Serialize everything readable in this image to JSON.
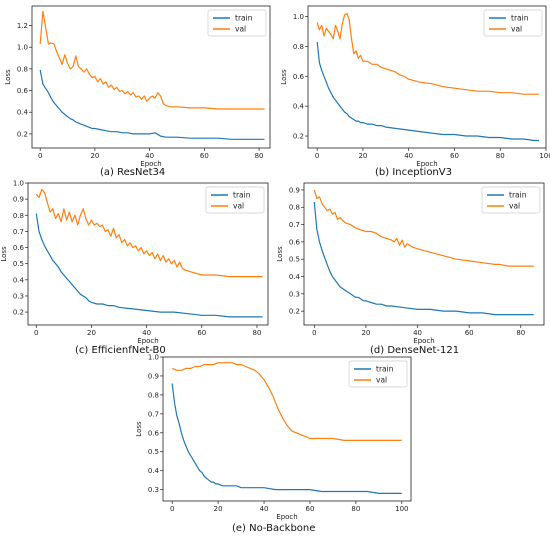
{
  "colors": {
    "train": "#1f77b4",
    "val": "#ff7f0e"
  },
  "chart_data": [
    {
      "type": "line",
      "caption": "(a) ResNet34",
      "xlabel": "Epoch",
      "ylabel": "Loss",
      "xlim": [
        -3,
        84
      ],
      "ylim": [
        0.07,
        1.38
      ],
      "xticks": [
        0,
        20,
        40,
        60,
        80
      ],
      "yticks": [
        0.2,
        0.4,
        0.6,
        0.8,
        1.0,
        1.2
      ],
      "ytick_labels": [
        "0.2",
        "0.4",
        "0.6",
        "0.8",
        "1.0",
        "1.2"
      ],
      "legend": "top-right",
      "series": [
        {
          "name": "train",
          "color": "#1f77b4",
          "x": [
            0,
            1,
            2,
            3,
            4,
            5,
            6,
            7,
            8,
            9,
            10,
            11,
            12,
            13,
            14,
            15,
            16,
            17,
            18,
            19,
            20,
            22,
            24,
            26,
            28,
            30,
            32,
            34,
            36,
            38,
            40,
            42,
            44,
            46,
            48,
            50,
            55,
            60,
            65,
            70,
            75,
            80,
            82
          ],
          "y": [
            0.79,
            0.66,
            0.62,
            0.58,
            0.53,
            0.49,
            0.46,
            0.43,
            0.4,
            0.38,
            0.36,
            0.34,
            0.33,
            0.31,
            0.3,
            0.29,
            0.28,
            0.27,
            0.26,
            0.25,
            0.25,
            0.24,
            0.23,
            0.22,
            0.22,
            0.21,
            0.21,
            0.2,
            0.2,
            0.2,
            0.2,
            0.21,
            0.18,
            0.17,
            0.17,
            0.17,
            0.16,
            0.16,
            0.16,
            0.15,
            0.15,
            0.15,
            0.15
          ]
        },
        {
          "name": "val",
          "color": "#ff7f0e",
          "x": [
            0,
            1,
            2,
            3,
            4,
            5,
            6,
            7,
            8,
            9,
            10,
            11,
            12,
            13,
            14,
            15,
            16,
            17,
            18,
            19,
            20,
            21,
            22,
            23,
            24,
            25,
            26,
            27,
            28,
            29,
            30,
            31,
            32,
            33,
            34,
            35,
            36,
            37,
            38,
            39,
            40,
            41,
            42,
            43,
            44,
            45,
            46,
            48,
            50,
            55,
            60,
            65,
            70,
            75,
            80,
            82
          ],
          "y": [
            1.03,
            1.33,
            1.18,
            1.03,
            1.04,
            1.03,
            0.96,
            0.9,
            0.84,
            0.93,
            0.85,
            0.8,
            0.82,
            0.92,
            0.82,
            0.8,
            0.77,
            0.8,
            0.75,
            0.72,
            0.73,
            0.68,
            0.71,
            0.66,
            0.68,
            0.63,
            0.65,
            0.61,
            0.63,
            0.59,
            0.6,
            0.57,
            0.59,
            0.56,
            0.58,
            0.54,
            0.55,
            0.52,
            0.55,
            0.5,
            0.53,
            0.55,
            0.53,
            0.58,
            0.55,
            0.48,
            0.46,
            0.45,
            0.45,
            0.44,
            0.44,
            0.43,
            0.43,
            0.43,
            0.43,
            0.43
          ]
        }
      ]
    },
    {
      "type": "line",
      "caption": "(b) InceptionV3",
      "xlabel": "Epoch",
      "ylabel": "Loss",
      "xlim": [
        -4,
        100
      ],
      "ylim": [
        0.12,
        1.07
      ],
      "xticks": [
        0,
        20,
        40,
        60,
        80,
        100
      ],
      "yticks": [
        0.2,
        0.4,
        0.6,
        0.8,
        1.0
      ],
      "ytick_labels": [
        "0.2",
        "0.4",
        "0.6",
        "0.8",
        "1.0"
      ],
      "legend": "top-right",
      "series": [
        {
          "name": "train",
          "color": "#1f77b4",
          "x": [
            0,
            1,
            2,
            3,
            4,
            5,
            6,
            7,
            8,
            9,
            10,
            11,
            12,
            13,
            14,
            15,
            16,
            17,
            18,
            19,
            20,
            22,
            24,
            26,
            28,
            30,
            35,
            40,
            45,
            50,
            55,
            60,
            65,
            70,
            75,
            80,
            85,
            90,
            95,
            97
          ],
          "y": [
            0.83,
            0.69,
            0.64,
            0.6,
            0.56,
            0.52,
            0.49,
            0.46,
            0.44,
            0.42,
            0.4,
            0.38,
            0.36,
            0.35,
            0.33,
            0.32,
            0.31,
            0.3,
            0.3,
            0.29,
            0.29,
            0.28,
            0.28,
            0.27,
            0.27,
            0.26,
            0.25,
            0.24,
            0.23,
            0.22,
            0.21,
            0.21,
            0.2,
            0.2,
            0.19,
            0.19,
            0.18,
            0.18,
            0.17,
            0.17
          ]
        },
        {
          "name": "val",
          "color": "#ff7f0e",
          "x": [
            0,
            1,
            2,
            3,
            4,
            5,
            6,
            7,
            8,
            9,
            10,
            11,
            12,
            13,
            14,
            15,
            16,
            17,
            18,
            19,
            20,
            22,
            24,
            26,
            28,
            30,
            32,
            34,
            36,
            38,
            40,
            45,
            50,
            55,
            60,
            65,
            70,
            75,
            80,
            85,
            90,
            95,
            97
          ],
          "y": [
            0.96,
            0.91,
            0.94,
            0.87,
            0.92,
            0.9,
            0.88,
            0.85,
            0.94,
            0.9,
            0.85,
            0.95,
            1.01,
            1.02,
            0.98,
            0.85,
            0.75,
            0.77,
            0.72,
            0.74,
            0.7,
            0.7,
            0.68,
            0.68,
            0.66,
            0.65,
            0.64,
            0.63,
            0.61,
            0.6,
            0.58,
            0.56,
            0.55,
            0.53,
            0.52,
            0.51,
            0.5,
            0.5,
            0.49,
            0.49,
            0.48,
            0.48,
            0.48
          ]
        }
      ]
    },
    {
      "type": "line",
      "caption": "(c) EfficienfNet-B0",
      "xlabel": "Epoch",
      "ylabel": "Loss",
      "xlim": [
        -3,
        84
      ],
      "ylim": [
        0.12,
        1.0
      ],
      "xticks": [
        0,
        20,
        40,
        60,
        80
      ],
      "yticks": [
        0.2,
        0.3,
        0.4,
        0.5,
        0.6,
        0.7,
        0.8,
        0.9,
        1.0
      ],
      "ytick_labels": [
        "0.2",
        "0.3",
        "0.4",
        "0.5",
        "0.6",
        "0.7",
        "0.8",
        "0.9",
        "1.0"
      ],
      "legend": "top-right",
      "series": [
        {
          "name": "train",
          "color": "#1f77b4",
          "x": [
            0,
            1,
            2,
            3,
            4,
            5,
            6,
            7,
            8,
            9,
            10,
            11,
            12,
            13,
            14,
            15,
            16,
            17,
            18,
            19,
            20,
            22,
            24,
            26,
            28,
            30,
            35,
            40,
            45,
            50,
            55,
            60,
            65,
            70,
            75,
            80,
            82
          ],
          "y": [
            0.81,
            0.7,
            0.65,
            0.61,
            0.58,
            0.55,
            0.52,
            0.5,
            0.48,
            0.45,
            0.43,
            0.41,
            0.39,
            0.37,
            0.35,
            0.33,
            0.31,
            0.3,
            0.29,
            0.27,
            0.26,
            0.25,
            0.25,
            0.24,
            0.24,
            0.23,
            0.22,
            0.21,
            0.2,
            0.2,
            0.19,
            0.18,
            0.18,
            0.17,
            0.17,
            0.17,
            0.17
          ]
        },
        {
          "name": "val",
          "color": "#ff7f0e",
          "x": [
            0,
            1,
            2,
            3,
            4,
            5,
            6,
            7,
            8,
            9,
            10,
            11,
            12,
            13,
            14,
            15,
            16,
            17,
            18,
            19,
            20,
            21,
            22,
            23,
            24,
            25,
            26,
            27,
            28,
            29,
            30,
            31,
            32,
            33,
            34,
            35,
            36,
            37,
            38,
            39,
            40,
            41,
            42,
            43,
            44,
            45,
            46,
            47,
            48,
            49,
            50,
            51,
            52,
            53,
            54,
            56,
            58,
            60,
            65,
            70,
            75,
            80,
            82
          ],
          "y": [
            0.93,
            0.91,
            0.96,
            0.94,
            0.88,
            0.82,
            0.84,
            0.78,
            0.81,
            0.76,
            0.84,
            0.77,
            0.82,
            0.76,
            0.8,
            0.74,
            0.8,
            0.84,
            0.78,
            0.74,
            0.77,
            0.74,
            0.75,
            0.73,
            0.74,
            0.7,
            0.71,
            0.67,
            0.72,
            0.66,
            0.68,
            0.63,
            0.65,
            0.61,
            0.63,
            0.6,
            0.61,
            0.58,
            0.6,
            0.56,
            0.58,
            0.55,
            0.57,
            0.53,
            0.56,
            0.52,
            0.55,
            0.51,
            0.53,
            0.5,
            0.52,
            0.48,
            0.51,
            0.47,
            0.46,
            0.45,
            0.44,
            0.43,
            0.43,
            0.42,
            0.42,
            0.42,
            0.42
          ]
        }
      ]
    },
    {
      "type": "line",
      "caption": "(d) DenseNet-121",
      "xlabel": "Epoch",
      "ylabel": "Loss",
      "xlim": [
        -4,
        89
      ],
      "ylim": [
        0.12,
        0.94
      ],
      "xticks": [
        0,
        20,
        40,
        60,
        80
      ],
      "yticks": [
        0.2,
        0.3,
        0.4,
        0.5,
        0.6,
        0.7,
        0.8,
        0.9
      ],
      "ytick_labels": [
        "0.2",
        "0.3",
        "0.4",
        "0.5",
        "0.6",
        "0.7",
        "0.8",
        "0.9"
      ],
      "legend": "top-right",
      "series": [
        {
          "name": "train",
          "color": "#1f77b4",
          "x": [
            0,
            1,
            2,
            3,
            4,
            5,
            6,
            7,
            8,
            9,
            10,
            11,
            12,
            13,
            14,
            15,
            16,
            17,
            18,
            19,
            20,
            22,
            24,
            26,
            28,
            30,
            35,
            40,
            45,
            50,
            55,
            60,
            65,
            70,
            75,
            80,
            85
          ],
          "y": [
            0.83,
            0.67,
            0.6,
            0.55,
            0.51,
            0.47,
            0.43,
            0.4,
            0.38,
            0.36,
            0.34,
            0.33,
            0.32,
            0.31,
            0.3,
            0.29,
            0.28,
            0.28,
            0.27,
            0.26,
            0.26,
            0.25,
            0.24,
            0.24,
            0.23,
            0.23,
            0.22,
            0.21,
            0.21,
            0.2,
            0.2,
            0.19,
            0.19,
            0.18,
            0.18,
            0.18,
            0.18
          ]
        },
        {
          "name": "val",
          "color": "#ff7f0e",
          "x": [
            0,
            1,
            2,
            3,
            4,
            5,
            6,
            7,
            8,
            9,
            10,
            12,
            14,
            16,
            18,
            20,
            22,
            24,
            26,
            28,
            30,
            31,
            32,
            33,
            34,
            35,
            36,
            38,
            40,
            45,
            50,
            55,
            60,
            65,
            70,
            72,
            75,
            80,
            85
          ],
          "y": [
            0.9,
            0.85,
            0.86,
            0.82,
            0.8,
            0.78,
            0.79,
            0.76,
            0.77,
            0.73,
            0.74,
            0.71,
            0.7,
            0.68,
            0.67,
            0.66,
            0.66,
            0.65,
            0.63,
            0.62,
            0.61,
            0.6,
            0.62,
            0.58,
            0.61,
            0.57,
            0.59,
            0.57,
            0.56,
            0.54,
            0.52,
            0.5,
            0.49,
            0.48,
            0.47,
            0.47,
            0.46,
            0.46,
            0.46
          ]
        }
      ]
    },
    {
      "type": "line",
      "caption": "(e) No-Backbone",
      "xlabel": "Epoch",
      "ylabel": "Loss",
      "xlim": [
        -4,
        104
      ],
      "ylim": [
        0.24,
        1.0
      ],
      "xticks": [
        0,
        20,
        40,
        60,
        80,
        100
      ],
      "yticks": [
        0.3,
        0.4,
        0.5,
        0.6,
        0.7,
        0.8,
        0.9,
        1.0
      ],
      "ytick_labels": [
        "0.3",
        "0.4",
        "0.5",
        "0.6",
        "0.7",
        "0.8",
        "0.9",
        "1.0"
      ],
      "legend": "top-right",
      "series": [
        {
          "name": "train",
          "color": "#1f77b4",
          "x": [
            0,
            1,
            2,
            3,
            4,
            5,
            6,
            7,
            8,
            9,
            10,
            11,
            12,
            13,
            14,
            15,
            16,
            17,
            18,
            19,
            20,
            22,
            24,
            26,
            28,
            30,
            35,
            40,
            45,
            50,
            55,
            60,
            65,
            70,
            75,
            80,
            85,
            90,
            95,
            100
          ],
          "y": [
            0.86,
            0.76,
            0.69,
            0.65,
            0.6,
            0.56,
            0.53,
            0.5,
            0.48,
            0.46,
            0.44,
            0.42,
            0.4,
            0.39,
            0.37,
            0.36,
            0.35,
            0.34,
            0.34,
            0.33,
            0.33,
            0.32,
            0.32,
            0.32,
            0.32,
            0.31,
            0.31,
            0.31,
            0.3,
            0.3,
            0.3,
            0.3,
            0.29,
            0.29,
            0.29,
            0.29,
            0.29,
            0.28,
            0.28,
            0.28
          ]
        },
        {
          "name": "val",
          "color": "#ff7f0e",
          "x": [
            0,
            2,
            4,
            6,
            8,
            10,
            12,
            14,
            16,
            18,
            20,
            22,
            24,
            26,
            28,
            30,
            32,
            34,
            36,
            38,
            40,
            42,
            44,
            46,
            48,
            50,
            52,
            54,
            56,
            58,
            60,
            65,
            70,
            75,
            80,
            85,
            90,
            95,
            100
          ],
          "y": [
            0.94,
            0.93,
            0.93,
            0.94,
            0.94,
            0.95,
            0.95,
            0.96,
            0.96,
            0.96,
            0.97,
            0.97,
            0.97,
            0.97,
            0.96,
            0.96,
            0.95,
            0.94,
            0.93,
            0.91,
            0.88,
            0.84,
            0.79,
            0.73,
            0.68,
            0.64,
            0.61,
            0.6,
            0.59,
            0.58,
            0.57,
            0.57,
            0.57,
            0.56,
            0.56,
            0.56,
            0.56,
            0.56,
            0.56
          ]
        }
      ]
    }
  ]
}
